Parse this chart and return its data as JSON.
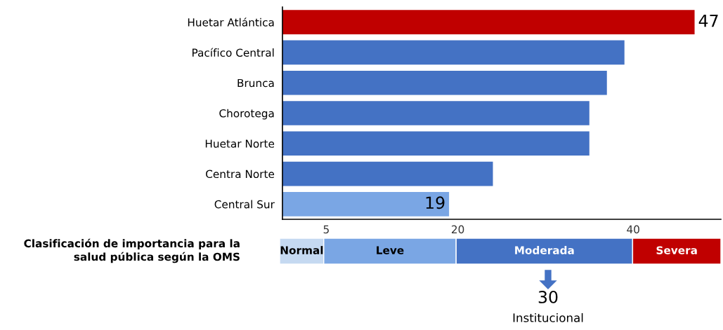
{
  "chart_data": [
    {
      "type": "bar",
      "orientation": "horizontal",
      "categories": [
        "Huetar Atlántica",
        "Pacífico Central",
        "Brunca",
        "Chorotega",
        "Huetar Norte",
        "Centra Norte",
        "Central Sur"
      ],
      "values": [
        47,
        39,
        37,
        35,
        35,
        24,
        19
      ],
      "colors": [
        "#c00000",
        "#4472c4",
        "#4472c4",
        "#4472c4",
        "#4472c4",
        "#4472c4",
        "#7aa6e4"
      ],
      "value_labels": [
        "47",
        null,
        null,
        null,
        null,
        null,
        "19"
      ],
      "xlim": [
        0,
        50
      ],
      "xticks": [
        5,
        20,
        40
      ],
      "grid": false,
      "legend": false
    },
    {
      "type": "bar",
      "orientation": "horizontal",
      "stacked": true,
      "title": "Clasificación de importancia para la\nsalud pública según la OMS",
      "categories": [
        null
      ],
      "series": [
        {
          "name": "Normal",
          "color": "#c5d9f1",
          "values": [
            5
          ]
        },
        {
          "name": "Leve",
          "color": "#7aa6e4",
          "values": [
            15
          ]
        },
        {
          "name": "Moderada",
          "color": "#4472c4",
          "values": [
            20
          ]
        },
        {
          "name": "Severa",
          "color": "#c00000",
          "values": [
            10
          ]
        }
      ],
      "xlim": [
        0,
        50
      ],
      "grid": false,
      "legend": false,
      "annotations": [
        "30",
        "Institucional"
      ]
    }
  ]
}
